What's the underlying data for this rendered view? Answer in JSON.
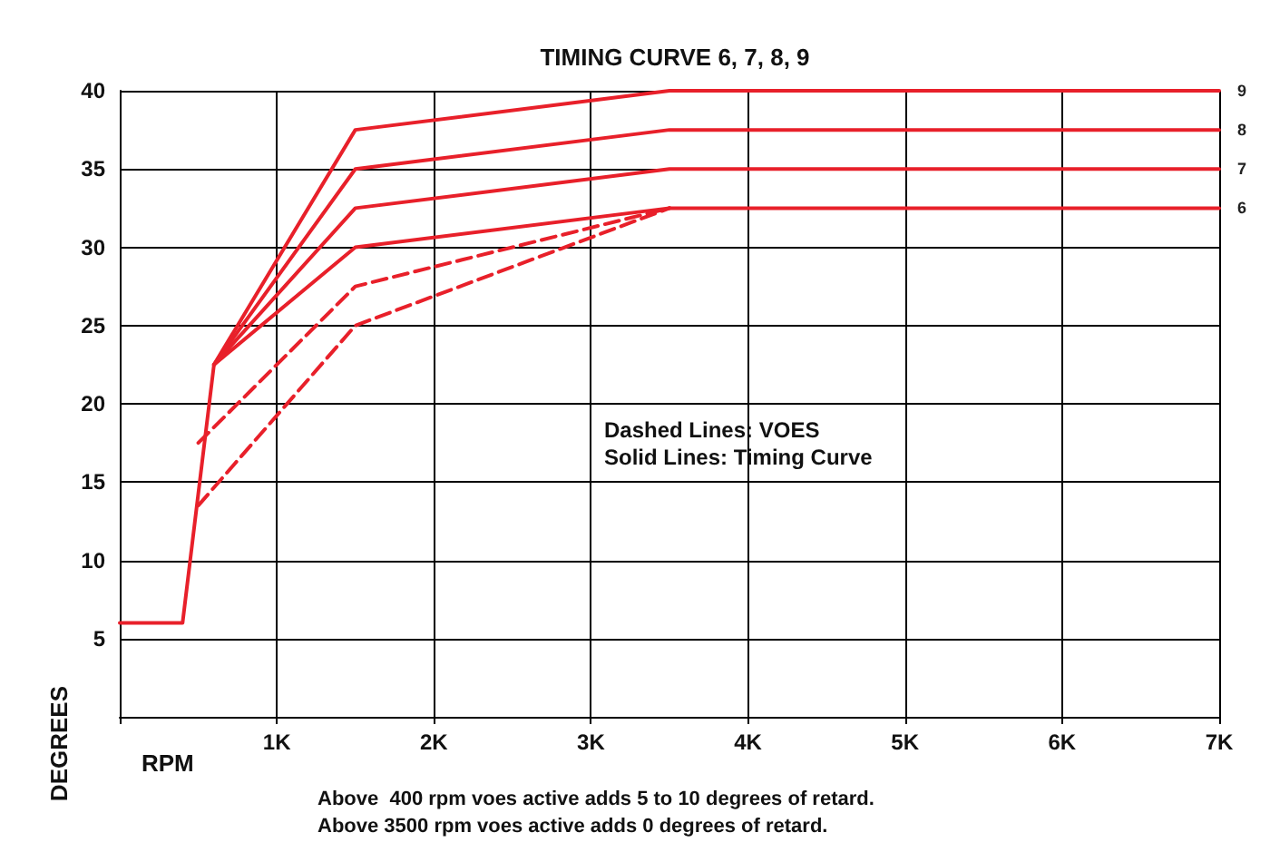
{
  "chart_data": {
    "type": "line",
    "title": "TIMING CURVE 6, 7, 8, 9",
    "xlabel": "RPM",
    "ylabel": "DEGREES",
    "annotations": [
      "Dashed Lines: VOES",
      "Solid Lines: Timing Curve",
      "Above  400 rpm voes active adds 5 to 10 degrees of retard.",
      "Above 3500 rpm voes active adds 0 degrees of retard."
    ],
    "xlim": [
      0,
      7000
    ],
    "ylim": [
      0,
      40
    ],
    "xticks": [
      {
        "value": 0,
        "label": null
      },
      {
        "value": 1000,
        "label": "1K"
      },
      {
        "value": 2000,
        "label": "2K"
      },
      {
        "value": 3000,
        "label": "3K"
      },
      {
        "value": 4000,
        "label": "4K"
      },
      {
        "value": 5000,
        "label": "5K"
      },
      {
        "value": 6000,
        "label": "6K"
      },
      {
        "value": 7000,
        "label": "7K"
      }
    ],
    "yticks": [
      {
        "value": 0,
        "label": null
      },
      5,
      10,
      15,
      20,
      25,
      30,
      35,
      40
    ],
    "grid": true,
    "marker": "none",
    "line_style": "solid",
    "series": [
      {
        "name": "9",
        "color": "#e8202a",
        "x": [
          0,
          400,
          600,
          1500,
          3500,
          7000
        ],
        "values": [
          6,
          6,
          22.5,
          37.5,
          40,
          40
        ]
      },
      {
        "name": "8",
        "color": "#e8202a",
        "x": [
          600,
          1500,
          3500,
          7000
        ],
        "values": [
          22.5,
          35,
          37.5,
          37.5
        ]
      },
      {
        "name": "7",
        "color": "#e8202a",
        "x": [
          600,
          1500,
          3500,
          7000
        ],
        "values": [
          22.5,
          32.5,
          35,
          35
        ]
      },
      {
        "name": "6",
        "color": "#e8202a",
        "x": [
          600,
          1500,
          3500,
          7000
        ],
        "values": [
          22.5,
          30,
          32.5,
          32.5
        ]
      },
      {
        "color": "#e8202a",
        "line_style": "dashed",
        "x": [
          500,
          1500,
          3500
        ],
        "values": [
          17.5,
          27.5,
          32.5
        ]
      },
      {
        "color": "#e8202a",
        "line_style": "dashed",
        "x": [
          500,
          1500,
          3500
        ],
        "values": [
          13.5,
          25,
          32.5
        ]
      }
    ]
  }
}
